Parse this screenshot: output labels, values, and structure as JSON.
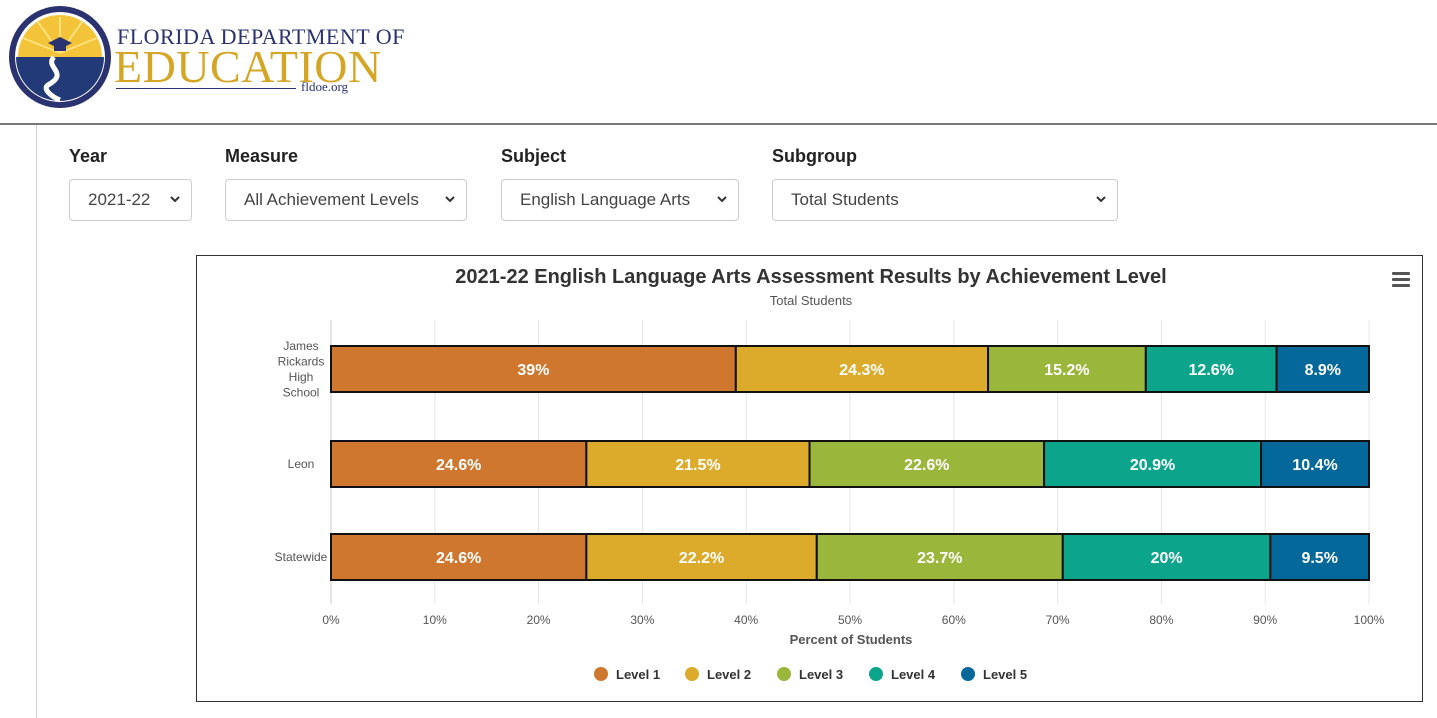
{
  "logo": {
    "line1": "FLORIDA DEPARTMENT OF",
    "line2": "EDUCATION",
    "url": "fldoe.org"
  },
  "filters": [
    {
      "label": "Year",
      "value": "2021-22"
    },
    {
      "label": "Measure",
      "value": "All Achievement Levels"
    },
    {
      "label": "Subject",
      "value": "English Language Arts"
    },
    {
      "label": "Subgroup",
      "value": "Total Students"
    }
  ],
  "chart_data": {
    "type": "bar",
    "orientation": "horizontal",
    "stacked": true,
    "title": "2021-22 English Language Arts Assessment Results by Achievement Level",
    "subtitle": "Total Students",
    "xlabel": "Percent of Students",
    "ylabel": "",
    "xlim": [
      0,
      100
    ],
    "x_ticks": [
      "0%",
      "10%",
      "20%",
      "30%",
      "40%",
      "50%",
      "60%",
      "70%",
      "80%",
      "90%",
      "100%"
    ],
    "categories": [
      [
        "James",
        "Rickards",
        "High",
        "School"
      ],
      [
        "Leon"
      ],
      [
        "Statewide"
      ]
    ],
    "series": [
      {
        "name": "Level 1",
        "color": "#cf772e",
        "values": [
          39,
          24.6,
          24.6
        ],
        "labels": [
          "39%",
          "24.6%",
          "24.6%"
        ]
      },
      {
        "name": "Level 2",
        "color": "#dcab2b",
        "values": [
          24.3,
          21.5,
          22.2
        ],
        "labels": [
          "24.3%",
          "21.5%",
          "22.2%"
        ]
      },
      {
        "name": "Level 3",
        "color": "#9ab63b",
        "values": [
          15.2,
          22.6,
          23.7
        ],
        "labels": [
          "15.2%",
          "22.6%",
          "23.7%"
        ]
      },
      {
        "name": "Level 4",
        "color": "#0ca58c",
        "values": [
          12.6,
          20.9,
          20
        ],
        "labels": [
          "12.6%",
          "20.9%",
          "20%"
        ]
      },
      {
        "name": "Level 5",
        "color": "#05689b",
        "values": [
          8.9,
          10.4,
          9.5
        ],
        "labels": [
          "8.9%",
          "10.4%",
          "9.5%"
        ]
      }
    ],
    "grid": true,
    "legend_position": "bottom-center"
  }
}
